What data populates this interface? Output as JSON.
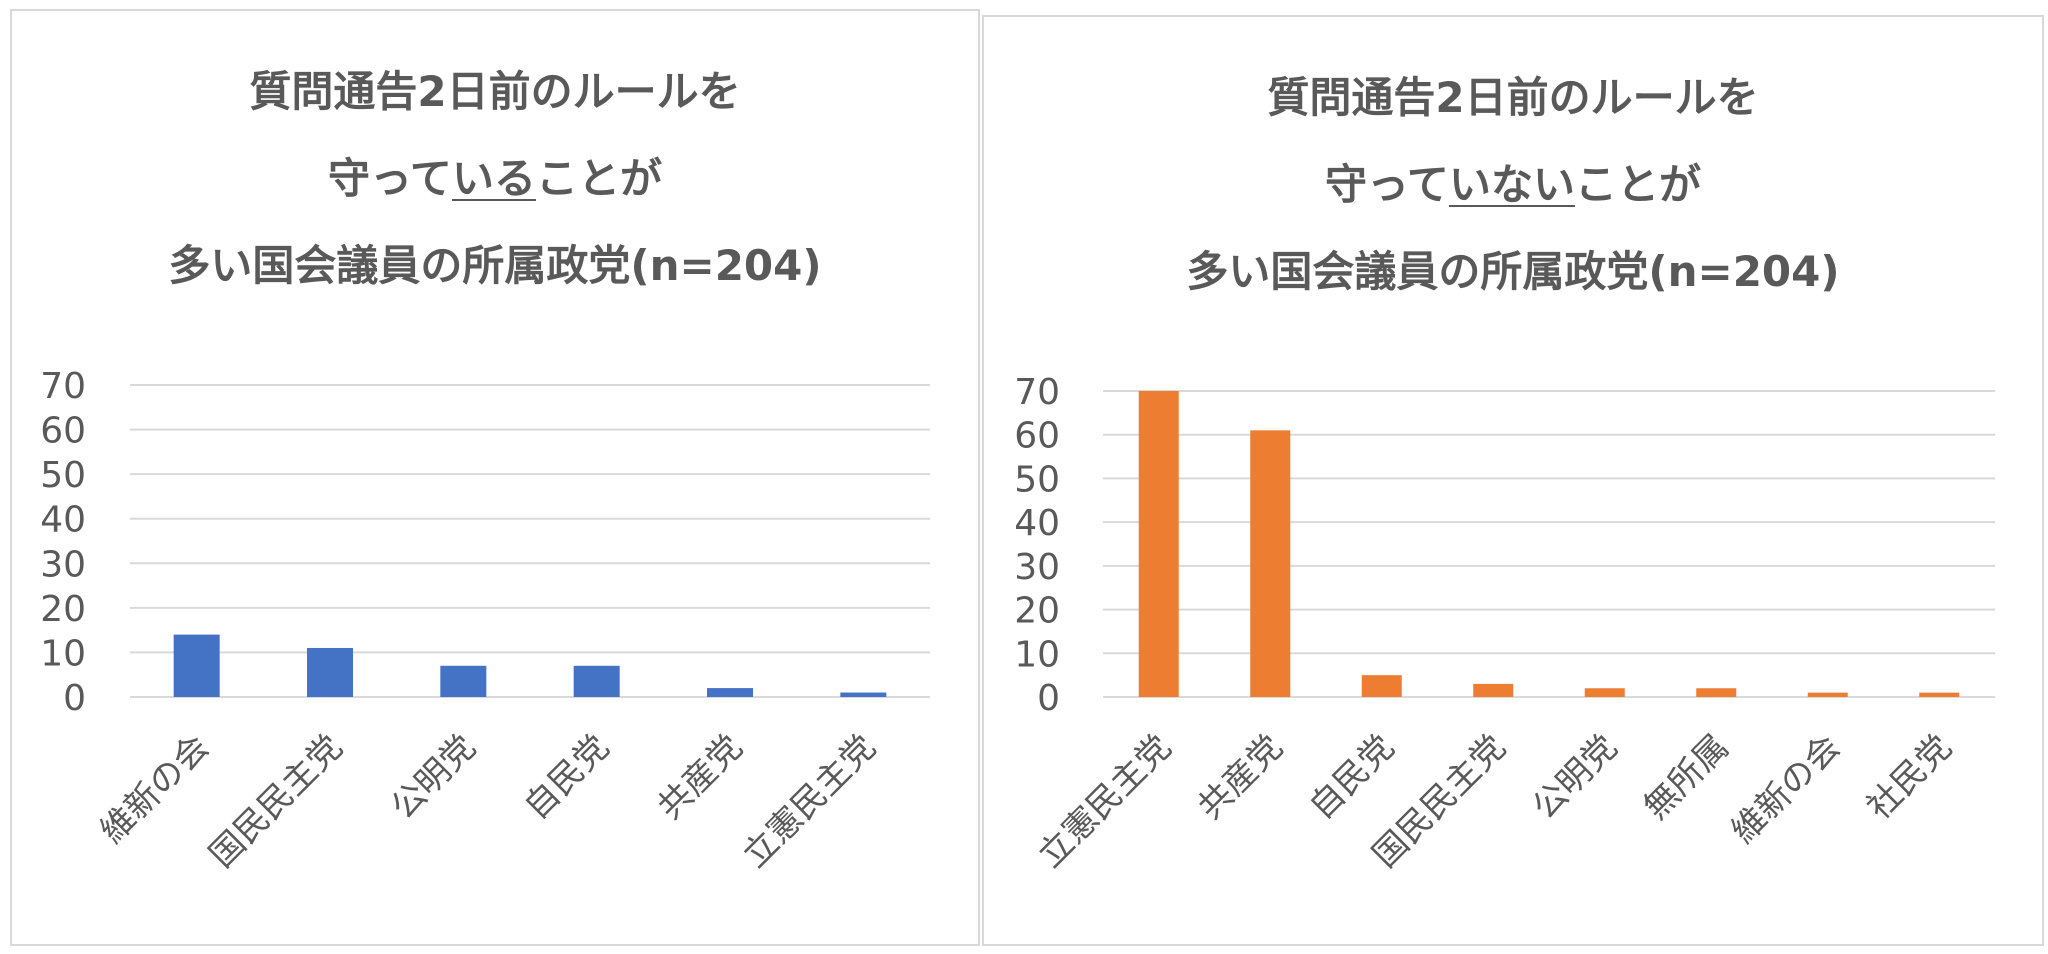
{
  "colors": {
    "left_bar": "#4472c4",
    "right_bar": "#ed7d31",
    "grid": "#d9d9d9",
    "text": "#595959"
  },
  "chart_data": [
    {
      "type": "bar",
      "title_line1": "質問通告2日前のルールを",
      "title_line2_pre": "守って",
      "title_line2_u": "いる",
      "title_line2_post": "ことが",
      "title_line3": "多い国会議員の所属政党(n=204)",
      "categories": [
        "維新の会",
        "国民民主党",
        "公明党",
        "自民党",
        "共産党",
        "立憲民主党"
      ],
      "values": [
        14,
        11,
        7,
        7,
        2,
        1
      ],
      "ylim": [
        0,
        70
      ],
      "yticks": [
        "0",
        "10",
        "20",
        "30",
        "40",
        "50",
        "60",
        "70"
      ],
      "grid": true,
      "color": "#4472c4"
    },
    {
      "type": "bar",
      "title_line1": "質問通告2日前のルールを",
      "title_line2_pre": "守って",
      "title_line2_u": "いない",
      "title_line2_post": "ことが",
      "title_line3": "多い国会議員の所属政党(n=204)",
      "categories": [
        "立憲民主党",
        "共産党",
        "自民党",
        "国民民主党",
        "公明党",
        "無所属",
        "維新の会",
        "社民党"
      ],
      "values": [
        70,
        61,
        5,
        3,
        2,
        2,
        1,
        1
      ],
      "ylim": [
        0,
        70
      ],
      "yticks": [
        "0",
        "10",
        "20",
        "30",
        "40",
        "50",
        "60",
        "70"
      ],
      "grid": true,
      "color": "#ed7d31"
    }
  ]
}
